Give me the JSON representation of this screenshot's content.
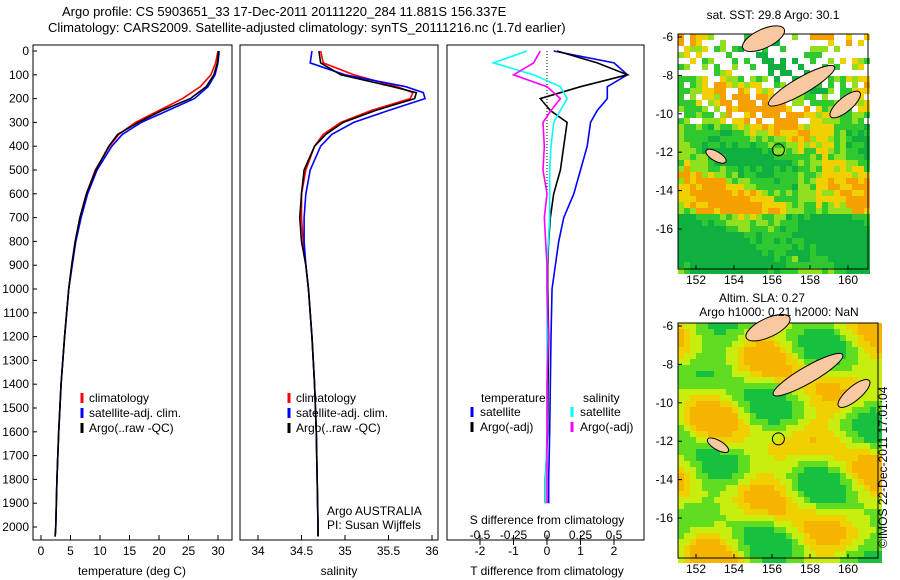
{
  "title_line1": "Argo profile: CS 5903651_33 17-Dec-2011 20111220_284 11.881S 156.337E",
  "title_line2": "Climatology: CARS2009. Satellite-adjusted climatology: synTS_20111216.nc (1.7d earlier)",
  "colors": {
    "climatology": "#ff0000",
    "satellite": "#0000ff",
    "argo": "#000000",
    "sal_satellite": "#00ffff",
    "sal_argo": "#ff00ff"
  },
  "chart_data": [
    {
      "type": "line",
      "name": "temperature",
      "xlabel": "temperature (deg C)",
      "ylabel": "",
      "xlim": [
        -1,
        31
      ],
      "ylim": [
        2050,
        0
      ],
      "xticks": [
        0,
        5,
        10,
        15,
        20,
        25,
        30
      ],
      "yticks": [
        0,
        100,
        200,
        300,
        400,
        500,
        600,
        700,
        800,
        900,
        1000,
        1100,
        1200,
        1300,
        1400,
        1500,
        1600,
        1700,
        1800,
        1900,
        2000
      ],
      "depth": [
        0,
        50,
        100,
        150,
        200,
        250,
        300,
        350,
        400,
        500,
        600,
        700,
        800,
        900,
        1000,
        1200,
        1400,
        1600,
        1800,
        2000,
        2040
      ],
      "series": [
        {
          "name": "climatology",
          "values": [
            30,
            29.6,
            28.8,
            27,
            24,
            20,
            16,
            13.2,
            11.6,
            9.2,
            7.7,
            6.6,
            5.8,
            5.2,
            4.7,
            4.0,
            3.4,
            3.0,
            2.7,
            2.5,
            2.4
          ]
        },
        {
          "name": "satellite-adj. clim.",
          "values": [
            30.2,
            30,
            29.5,
            28.3,
            26,
            21.5,
            17,
            13.8,
            12,
            9.5,
            7.9,
            6.8,
            5.9,
            5.3,
            4.7,
            4.0,
            3.4,
            3.0,
            2.7,
            2.5,
            2.4
          ]
        },
        {
          "name": "Argo(..raw -QC)",
          "values": [
            30.1,
            29.9,
            29.3,
            28,
            25.3,
            20.5,
            16.5,
            13,
            11.5,
            9.3,
            7.7,
            6.6,
            5.8,
            5.2,
            4.7,
            4.0,
            3.4,
            3.0,
            2.7,
            2.5,
            2.4
          ]
        }
      ],
      "legend": [
        "climatology",
        "satellite-adj. clim.",
        "Argo(..raw -QC)"
      ],
      "legend_position": "bottom-center"
    },
    {
      "type": "line",
      "name": "salinity",
      "xlabel": "salinity",
      "xlim": [
        33.8,
        36.1
      ],
      "ylim": [
        2050,
        0
      ],
      "xticks": [
        34,
        34.5,
        35,
        35.5,
        36
      ],
      "depth": [
        0,
        50,
        100,
        150,
        175,
        200,
        250,
        300,
        350,
        400,
        500,
        600,
        700,
        800,
        900,
        1000,
        1200,
        1400,
        1600,
        1800,
        2000,
        2040
      ],
      "series": [
        {
          "name": "climatology",
          "values": [
            34.72,
            34.75,
            35.1,
            35.6,
            35.78,
            35.75,
            35.3,
            34.95,
            34.75,
            34.65,
            34.55,
            34.5,
            34.5,
            34.52,
            34.55,
            34.58,
            34.62,
            34.65,
            34.67,
            34.68,
            34.69,
            34.69
          ]
        },
        {
          "name": "satellite-adj. clim.",
          "values": [
            34.62,
            34.6,
            35.0,
            35.7,
            35.9,
            35.92,
            35.5,
            35.1,
            34.85,
            34.72,
            34.6,
            34.55,
            34.53,
            34.53,
            34.55,
            34.58,
            34.62,
            34.65,
            34.67,
            34.68,
            34.69,
            34.69
          ]
        },
        {
          "name": "Argo(..raw -QC)",
          "values": [
            34.7,
            34.72,
            34.95,
            35.55,
            35.82,
            35.8,
            35.35,
            34.98,
            34.78,
            34.65,
            34.53,
            34.5,
            34.48,
            34.5,
            34.55,
            34.58,
            34.62,
            34.65,
            34.67,
            34.68,
            34.69,
            34.69
          ]
        }
      ],
      "legend": [
        "climatology",
        "satellite-adj. clim.",
        "Argo(..raw -QC)"
      ],
      "annotation": [
        "Argo AUSTRALIA",
        "PI: Susan Wijffels"
      ]
    },
    {
      "type": "line",
      "name": "differences",
      "xlabel": "T difference from climatology",
      "x2label": "S difference from climatology",
      "xlim": [
        -3,
        3
      ],
      "xticks": [
        -2,
        -1,
        0,
        1,
        2
      ],
      "x2ticks": [
        -0.5,
        -0.25,
        0,
        0.25,
        0.5
      ],
      "x2tick_labels": [
        "-0.5",
        "-0.25",
        "0",
        "0.25",
        "0.5"
      ],
      "ylim": [
        2050,
        0
      ],
      "depth": [
        0,
        50,
        100,
        150,
        200,
        250,
        300,
        400,
        500,
        600,
        700,
        800,
        900,
        1000,
        1200,
        1400,
        1600,
        1800,
        1900
      ],
      "series": [
        {
          "name": "temperature satellite",
          "values": [
            0.2,
            2.0,
            2.4,
            1.8,
            1.8,
            1.5,
            1.3,
            1.2,
            1.0,
            0.8,
            0.5,
            0.35,
            0.25,
            0.15,
            0.12,
            0.1,
            0.08,
            0.05,
            0.05
          ]
        },
        {
          "name": "temperature Argo(-adj)",
          "values": [
            0.3,
            1.5,
            2.4,
            1.0,
            -0.2,
            0.1,
            0.6,
            0.5,
            0.4,
            0.2,
            0.1,
            0.05,
            0.02,
            0.02,
            0.05,
            0.03,
            0.02,
            -0.05,
            -0.05
          ]
        },
        {
          "name": "salinity satellite",
          "values": [
            -0.15,
            -0.4,
            -0.1,
            0.1,
            0.15,
            0.1,
            0.05,
            0.03,
            0.02,
            0.02,
            0.02,
            0.01,
            0.0,
            0.0,
            0.0,
            0.0,
            0.0,
            -0.01,
            -0.01
          ]
        },
        {
          "name": "salinity Argo(-adj)",
          "values": [
            -0.05,
            -0.1,
            -0.25,
            0.0,
            0.1,
            0.03,
            -0.03,
            -0.02,
            -0.03,
            0.0,
            -0.02,
            -0.01,
            0.0,
            0.0,
            0.01,
            0.0,
            0.0,
            0.0,
            0.0
          ]
        }
      ],
      "legend": {
        "temperature": "temperature",
        "salinity": "salinity",
        "items": [
          "satellite",
          "Argo(-adj)",
          "satellite",
          "Argo(-adj)"
        ]
      }
    },
    {
      "type": "heatmap",
      "name": "sst-map",
      "title": "sat. SST: 29.8  Argo: 30.1",
      "xticks": [
        152,
        154,
        156,
        158,
        160
      ],
      "yticks": [
        -6,
        -8,
        -10,
        -12,
        -14,
        -16
      ],
      "xlim": [
        151,
        161.6
      ],
      "ylim": [
        -17.8,
        -5.8
      ],
      "marker": [
        156.337,
        -11.881
      ]
    },
    {
      "type": "heatmap",
      "name": "sla-map",
      "title": "Altim. SLA: 0.27",
      "subtitle": "Argo h1000: 0.21 h2000: NaN",
      "xticks": [
        152,
        154,
        156,
        158,
        160
      ],
      "yticks": [
        -6,
        -8,
        -10,
        -12,
        -14,
        -16
      ],
      "xlim": [
        151,
        161.6
      ],
      "ylim": [
        -17.8,
        -5.8
      ],
      "marker": [
        156.337,
        -11.881
      ]
    }
  ],
  "credit": "©IMOS 22-Dec-2011 17:01:04"
}
